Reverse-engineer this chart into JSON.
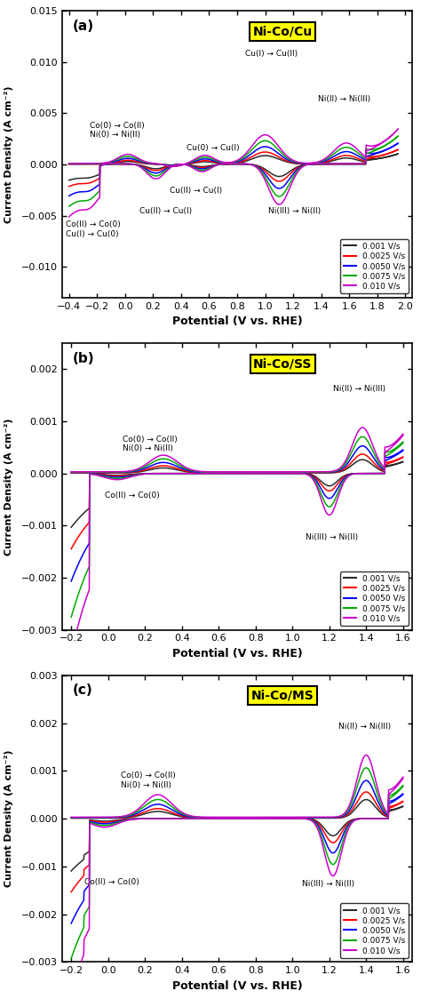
{
  "colors": [
    "#2b2b2b",
    "#ff0000",
    "#0000ff",
    "#00aa00",
    "#cc00cc"
  ],
  "scan_rates": [
    "0.001 V/s",
    "0.0025 V/s",
    "0.0050 V/s",
    "0.0075 V/s",
    "0.010 V/s"
  ],
  "panel_a": {
    "title": "Ni-Co/Cu",
    "label": "(a)",
    "xlim": [
      -0.45,
      2.05
    ],
    "ylim": [
      -0.013,
      0.015
    ],
    "xticks": [
      -0.4,
      -0.2,
      0.0,
      0.2,
      0.4,
      0.6,
      0.8,
      1.0,
      1.2,
      1.4,
      1.6,
      1.8,
      2.0
    ],
    "yticks": [
      -0.01,
      -0.005,
      0.0,
      0.005,
      0.01,
      0.015
    ],
    "xlabel": "Potential (V vs. RHE)",
    "ylabel": "Current Density (A cm⁻²)"
  },
  "panel_b": {
    "title": "Ni-Co/SS",
    "label": "(b)",
    "xlim": [
      -0.25,
      1.65
    ],
    "ylim": [
      -0.003,
      0.0025
    ],
    "xticks": [
      -0.2,
      0.0,
      0.2,
      0.4,
      0.6,
      0.8,
      1.0,
      1.2,
      1.4,
      1.6
    ],
    "yticks": [
      -0.003,
      -0.002,
      -0.001,
      0.0,
      0.001,
      0.002
    ],
    "xlabel": "Potential (V vs. RHE)",
    "ylabel": "Current Density (A cm⁻²)"
  },
  "panel_c": {
    "title": "Ni-Co/MS",
    "label": "(c)",
    "xlim": [
      -0.25,
      1.65
    ],
    "ylim": [
      -0.003,
      0.003
    ],
    "xticks": [
      -0.2,
      0.0,
      0.2,
      0.4,
      0.6,
      0.8,
      1.0,
      1.2,
      1.4,
      1.6
    ],
    "yticks": [
      -0.003,
      -0.002,
      -0.001,
      0.0,
      0.001,
      0.002,
      0.003
    ],
    "xlabel": "Potential (V vs. RHE)",
    "ylabel": "Current Density (A cm⁻²)"
  }
}
